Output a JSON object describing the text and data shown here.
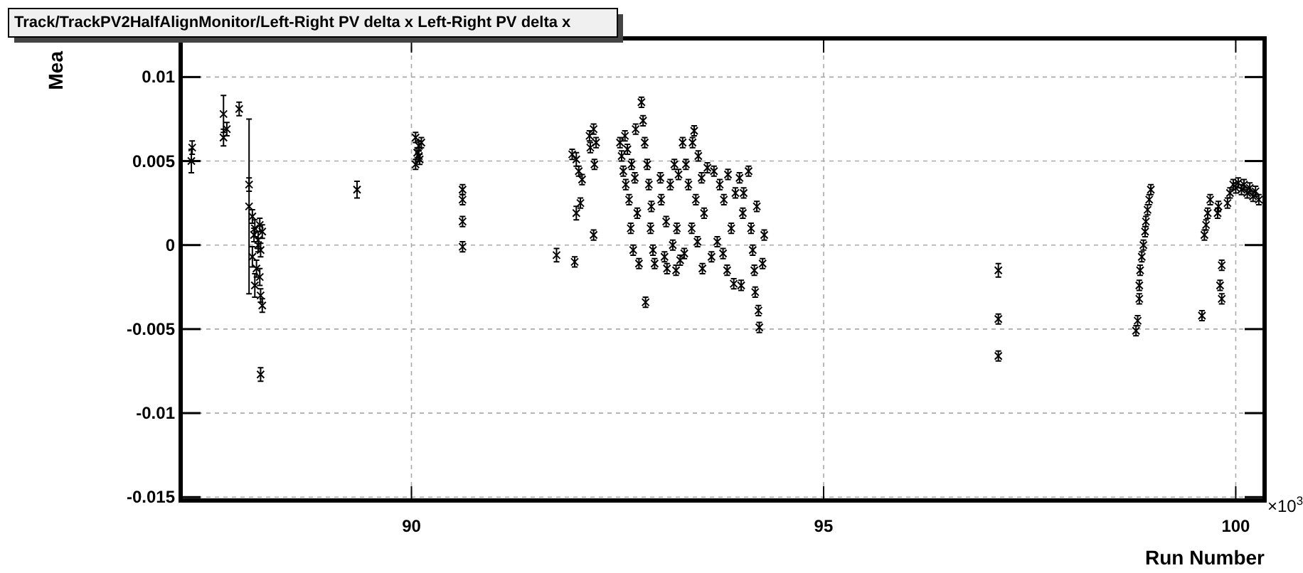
{
  "chart_data": {
    "type": "scatter",
    "title": "Track/TrackPV2HalfAlignMonitor/Left-Right PV delta x Left-Right PV delta x",
    "xlabel": "Run Number",
    "ylabel": "Mea",
    "annotations": [
      "×10$^{3}$"
    ],
    "xlim": [
      87.2,
      100.35
    ],
    "ylim": [
      -0.0152,
      0.0123
    ],
    "xticks": [
      90,
      95,
      100
    ],
    "yticks": [
      -0.015,
      -0.01,
      -0.005,
      0,
      0.005,
      0.01
    ],
    "grid": true,
    "marker": "cross",
    "x": [
      87.33,
      87.34,
      87.72,
      87.72,
      87.76,
      87.91,
      88.03,
      88.03,
      88.07,
      88.1,
      88.14,
      88.17,
      88.07,
      88.12,
      88.16,
      88.1,
      88.17,
      88.19,
      88.14,
      88.09,
      88.16,
      88.19,
      88.17,
      89.34,
      90.05,
      90.09,
      90.07,
      90.1,
      90.05,
      90.12,
      90.09,
      90.62,
      90.62,
      90.62,
      90.62,
      91.76,
      91.98,
      91.95,
      92.0,
      92.03,
      92.07,
      92.0,
      92.05,
      92.22,
      92.21,
      92.16,
      92.21,
      92.24,
      92.17,
      92.53,
      92.55,
      92.57,
      92.59,
      92.6,
      92.62,
      92.64,
      92.66,
      92.67,
      92.69,
      92.71,
      92.72,
      92.74,
      92.76,
      92.79,
      92.81,
      92.83,
      92.84,
      92.86,
      92.88,
      92.9,
      92.91,
      92.93,
      92.95,
      93.02,
      93.03,
      93.07,
      93.09,
      93.1,
      93.14,
      93.17,
      93.19,
      93.21,
      93.22,
      93.24,
      93.26,
      93.29,
      93.31,
      93.33,
      93.36,
      93.4,
      93.41,
      93.43,
      93.45,
      93.47,
      93.48,
      93.52,
      93.53,
      93.55,
      93.59,
      93.64,
      93.67,
      93.71,
      93.74,
      93.78,
      93.79,
      93.83,
      93.84,
      93.88,
      93.91,
      93.93,
      93.98,
      94.0,
      94.02,
      94.03,
      94.09,
      94.12,
      94.14,
      94.16,
      94.17,
      94.19,
      94.21,
      94.22,
      94.26,
      94.28,
      97.12,
      97.12,
      97.12,
      98.79,
      98.81,
      98.83,
      98.83,
      98.84,
      98.86,
      98.88,
      98.9,
      98.91,
      98.93,
      98.95,
      98.97,
      99.59,
      99.62,
      99.64,
      99.66,
      99.69,
      99.78,
      99.79,
      99.81,
      99.83,
      99.83,
      99.9,
      99.93,
      99.97,
      100.0,
      100.03,
      100.07,
      100.1,
      100.14,
      100.17,
      100.21,
      100.24,
      100.28
    ],
    "values": [
      0.005,
      0.0058,
      0.0078,
      0.0064,
      0.0069,
      0.0081,
      0.0023,
      0.0036,
      0.0017,
      0.001,
      0.0003,
      -0.0003,
      -0.0007,
      -0.0014,
      -0.0019,
      -0.0024,
      -0.003,
      -0.0036,
      0.0,
      0.0006,
      0.0012,
      0.0008,
      -0.0077,
      0.0033,
      0.0064,
      0.0059,
      0.0055,
      0.0051,
      0.0048,
      0.0061,
      0.0053,
      0.0033,
      0.0027,
      0.0014,
      -0.0001,
      -0.0006,
      -0.001,
      0.0054,
      0.0051,
      0.0044,
      0.0039,
      0.0019,
      0.0025,
      0.0048,
      0.0006,
      0.0065,
      0.0069,
      0.0061,
      0.0058,
      0.0061,
      0.0053,
      0.0044,
      0.0065,
      0.0036,
      0.0057,
      0.0027,
      0.001,
      0.0048,
      -0.0003,
      0.004,
      0.0069,
      0.0019,
      -0.0011,
      0.0085,
      0.0074,
      0.0061,
      -0.0034,
      0.0048,
      0.0036,
      0.001,
      0.0023,
      -0.0003,
      -0.0011,
      0.004,
      0.0027,
      -0.0007,
      0.0014,
      -0.0014,
      0.0036,
      0.0,
      0.0048,
      -0.0015,
      0.001,
      0.0042,
      -0.0009,
      0.0061,
      -0.0005,
      0.0048,
      0.0036,
      0.001,
      0.0061,
      0.0068,
      0.0027,
      0.0002,
      0.0053,
      0.004,
      -0.0014,
      0.0019,
      0.0046,
      -0.0007,
      0.0044,
      0.0002,
      0.0036,
      -0.0005,
      0.0027,
      -0.0015,
      0.0042,
      0.001,
      -0.0023,
      0.0031,
      0.004,
      -0.0024,
      0.0019,
      0.0031,
      0.0044,
      0.001,
      -0.0003,
      -0.0015,
      -0.0028,
      0.0023,
      -0.0039,
      -0.0049,
      -0.0011,
      0.0006,
      -0.0015,
      -0.0044,
      -0.0066,
      -0.0051,
      -0.0045,
      -0.0032,
      -0.0024,
      -0.0015,
      -0.0007,
      0.0,
      0.0008,
      0.0014,
      0.0021,
      0.0027,
      0.0033,
      -0.0042,
      0.0006,
      0.0012,
      0.0019,
      0.0027,
      0.0019,
      0.0023,
      -0.0024,
      -0.0032,
      -0.0012,
      0.0025,
      0.0031,
      0.0036,
      0.0034,
      0.0037,
      0.0033,
      0.0036,
      0.0031,
      0.0034,
      0.0029,
      0.0032,
      0.0027
    ],
    "errors": [
      0.0007,
      0.0004,
      0.0011,
      0.0005,
      0.0004,
      0.0004,
      0.0052,
      0.0004,
      0.0004,
      0.0005,
      0.0005,
      0.0004,
      0.0006,
      0.0005,
      0.0005,
      0.0007,
      0.0004,
      0.0004,
      0.0004,
      0.0004,
      0.0004,
      0.0004,
      0.0004,
      0.0005,
      0.0003,
      0.0003,
      0.0003,
      0.0003,
      0.0003,
      0.0003,
      0.0003,
      0.0003,
      0.0003,
      0.0003,
      0.0003,
      0.0004,
      0.0003,
      0.0003,
      0.0004,
      0.0003,
      0.0003,
      0.0004,
      0.0003,
      0.0003,
      0.0003,
      0.0003,
      0.0003,
      0.0003,
      0.0003,
      0.0003,
      0.0003,
      0.0003,
      0.0003,
      0.0003,
      0.0003,
      0.0003,
      0.0003,
      0.0003,
      0.0003,
      0.0003,
      0.0003,
      0.0003,
      0.0003,
      0.0003,
      0.0003,
      0.0003,
      0.0003,
      0.0003,
      0.0003,
      0.0003,
      0.0003,
      0.0003,
      0.0003,
      0.0003,
      0.0003,
      0.0003,
      0.0003,
      0.0003,
      0.0003,
      0.0003,
      0.0003,
      0.0003,
      0.0003,
      0.0003,
      0.0003,
      0.0003,
      0.0003,
      0.0003,
      0.0003,
      0.0003,
      0.0003,
      0.0003,
      0.0003,
      0.0003,
      0.0003,
      0.0003,
      0.0003,
      0.0003,
      0.0003,
      0.0003,
      0.0003,
      0.0003,
      0.0003,
      0.0003,
      0.0003,
      0.0003,
      0.0003,
      0.0003,
      0.0003,
      0.0003,
      0.0003,
      0.0003,
      0.0003,
      0.0003,
      0.0003,
      0.0003,
      0.0003,
      0.0003,
      0.0003,
      0.0003,
      0.0003,
      0.0003,
      0.0003,
      0.0003,
      0.0004,
      0.0003,
      0.0003,
      0.0003,
      0.0003,
      0.0003,
      0.0003,
      0.0003,
      0.0003,
      0.0003,
      0.0003,
      0.0003,
      0.0003,
      0.0003,
      0.0003,
      0.0003,
      0.0003,
      0.0003,
      0.0003,
      0.0003,
      0.0003,
      0.0003,
      0.0003,
      0.0003,
      0.0003,
      0.0003,
      0.0003,
      0.0003,
      0.0003,
      0.0003,
      0.0003,
      0.0003,
      0.0003,
      0.0003,
      0.0003,
      0.0003,
      0.0003
    ]
  }
}
